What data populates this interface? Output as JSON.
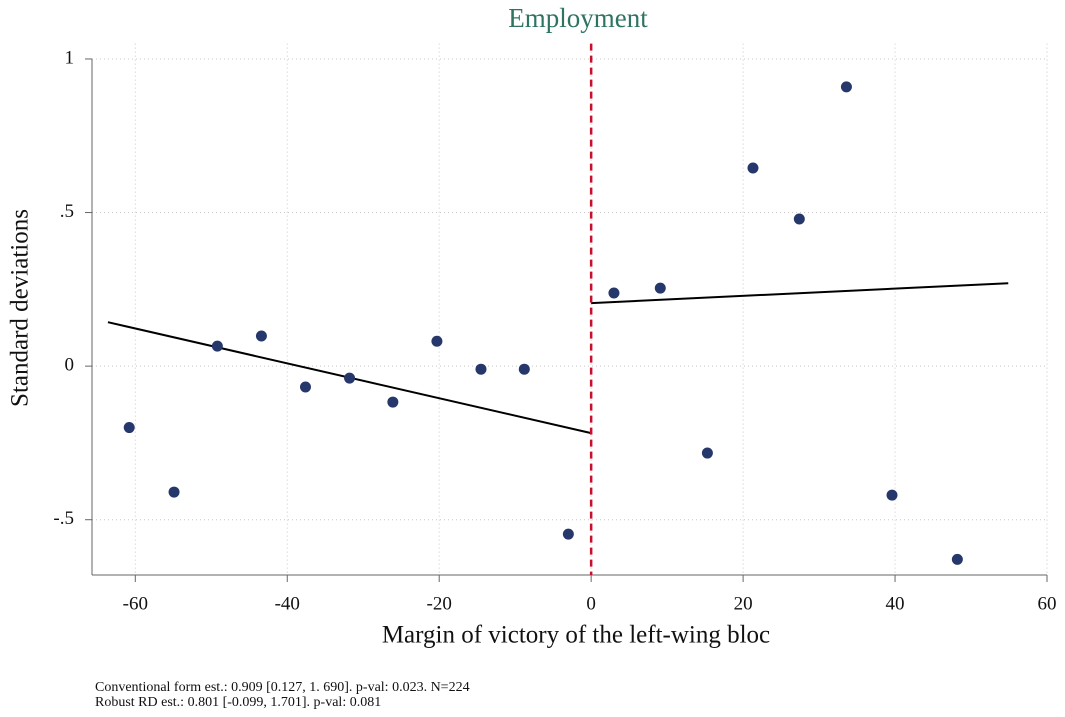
{
  "chart_data": {
    "type": "scatter",
    "title": "Employment",
    "title_color": "#2f7463",
    "x_label": "Margin of victory of the left-wing bloc",
    "y_label": "Standard deviations",
    "x": [
      -60.8,
      -54.9,
      -49.2,
      -43.4,
      -37.6,
      -31.8,
      -26.1,
      -20.3,
      -14.5,
      -8.8,
      -3.0,
      3.0,
      9.1,
      15.3,
      21.3,
      27.4,
      33.6,
      39.6,
      48.2
    ],
    "values": [
      -0.2,
      -0.41,
      0.065,
      0.098,
      -0.068,
      -0.039,
      -0.117,
      0.081,
      -0.01,
      -0.01,
      -0.547,
      0.238,
      0.254,
      -0.283,
      0.645,
      0.479,
      0.909,
      -0.42,
      -0.629
    ],
    "color": "#26386b",
    "fit_lines": [
      {
        "x": [
          -63.6,
          0
        ],
        "values": [
          0.143,
          -0.218
        ]
      },
      {
        "x": [
          0,
          54.9
        ],
        "values": [
          0.205,
          0.27
        ]
      }
    ],
    "fit_color": "#000000",
    "cutoff": 0,
    "cutoff_color": "#c8102e",
    "xlim": [
      -65.7,
      60
    ],
    "ylim": [
      -0.68,
      1.05
    ],
    "xticks": [
      -60,
      -40,
      -20,
      0,
      20,
      40,
      60
    ],
    "yticks": [
      {
        "value": -0.5,
        "label": "-.5"
      },
      0,
      {
        "value": 0.5,
        "label": ".5"
      },
      1
    ],
    "grid": true,
    "notes": [
      "Conventional form est.: 0.909 [0.127, 1. 690]. p-val: 0.023. N=224",
      "Robust RD est.: 0.801 [-0.099, 1.701]. p-val: 0.081"
    ]
  }
}
